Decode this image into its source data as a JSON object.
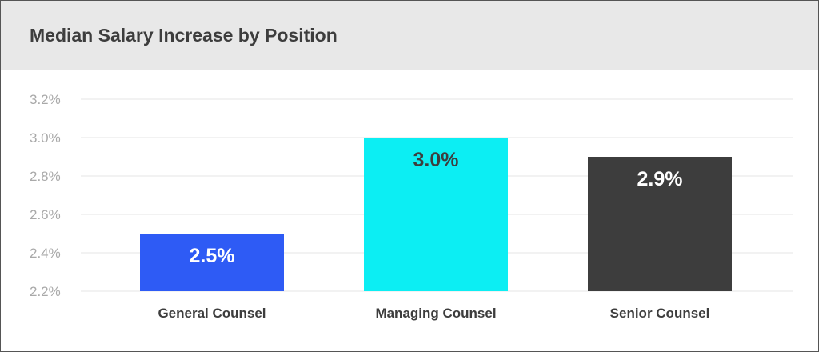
{
  "header": {
    "title": "Median Salary Increase by Position"
  },
  "colors": {
    "header_bg": "#e8e8e8",
    "gridline": "#e6e6e6",
    "tick_text": "#a9a9a9",
    "title_text": "#3d3d3d"
  },
  "chart_data": {
    "type": "bar",
    "title": "Median Salary Increase by Position",
    "categories": [
      "General Counsel",
      "Managing Counsel",
      "Senior Counsel"
    ],
    "values": [
      2.5,
      3.0,
      2.9
    ],
    "data_labels": [
      "2.5%",
      "3.0%",
      "2.9%"
    ],
    "bar_colors": [
      "#2e5bf5",
      "#0ceef3",
      "#3d3d3d"
    ],
    "data_label_colors": [
      "#ffffff",
      "#3d3d3d",
      "#ffffff"
    ],
    "ylim": [
      2.2,
      3.2
    ],
    "yticks": [
      2.2,
      2.4,
      2.6,
      2.8,
      3.0,
      3.2
    ],
    "ytick_labels": [
      "2.2%",
      "2.4%",
      "2.6%",
      "2.8%",
      "3.0%",
      "3.2%"
    ],
    "xlabel": "",
    "ylabel": "",
    "grid": true,
    "legend": "none"
  }
}
